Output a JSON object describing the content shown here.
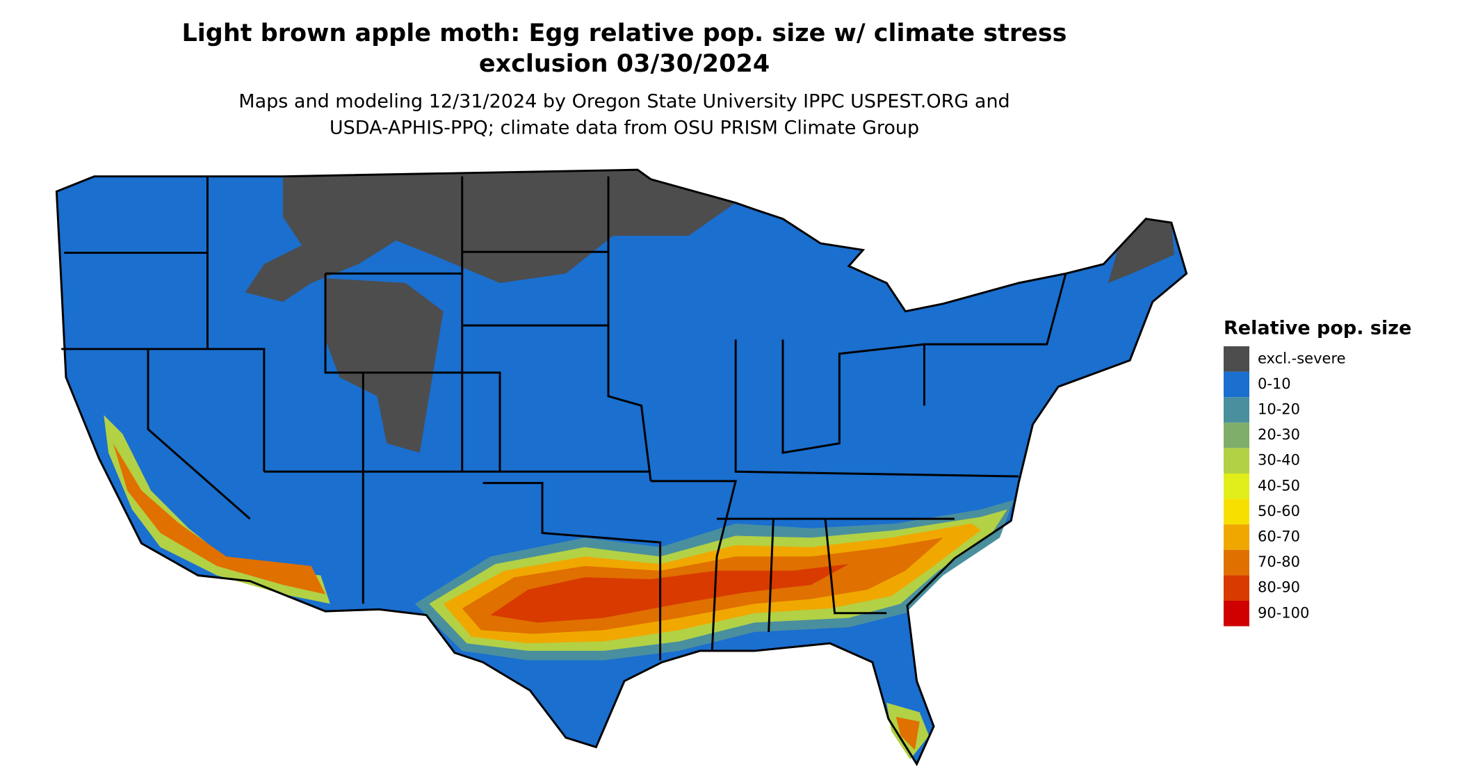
{
  "title": [
    "Light brown apple moth: Egg relative pop. size w/ climate stress",
    "exclusion 03/30/2024"
  ],
  "subtitle": [
    "Maps and modeling 12/31/2024 by Oregon State University IPPC USPEST.ORG and",
    "USDA-APHIS-PPQ; climate data from OSU PRISM Climate Group"
  ],
  "legend": {
    "title": "Relative pop. size",
    "items": [
      {
        "label": "excl.-severe",
        "color": "#4d4d4d"
      },
      {
        "label": "0-10",
        "color": "#1a6fcf"
      },
      {
        "label": "10-20",
        "color": "#4a8f9e"
      },
      {
        "label": "20-30",
        "color": "#7fae6b"
      },
      {
        "label": "30-40",
        "color": "#b2d145"
      },
      {
        "label": "40-50",
        "color": "#e1ee1a"
      },
      {
        "label": "50-60",
        "color": "#f7df00"
      },
      {
        "label": "60-70",
        "color": "#f0a800"
      },
      {
        "label": "70-80",
        "color": "#e07000"
      },
      {
        "label": "80-90",
        "color": "#d83a00"
      },
      {
        "label": "90-100",
        "color": "#d00000"
      }
    ]
  }
}
